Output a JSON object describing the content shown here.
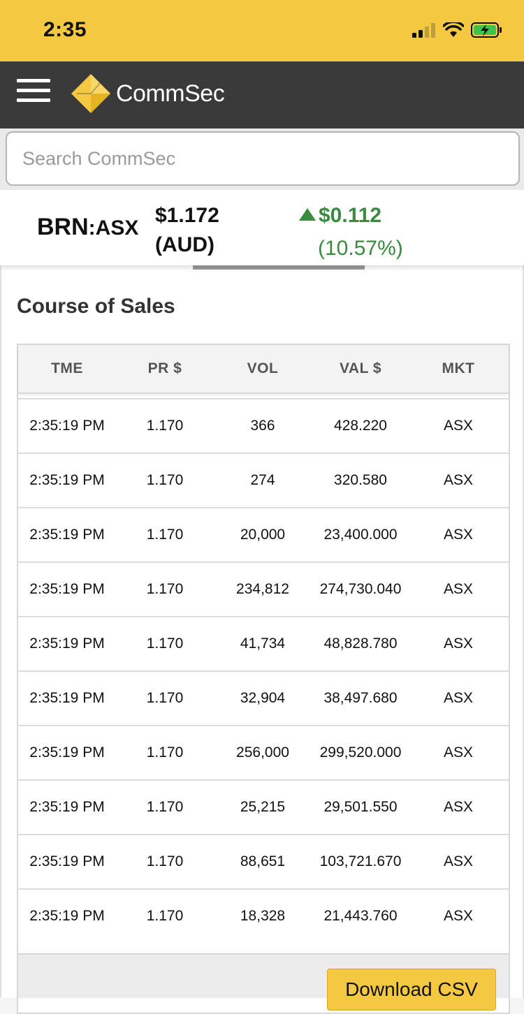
{
  "status_bar": {
    "time": "2:35",
    "icons": [
      "signal-icon",
      "wifi-icon",
      "battery-charging-icon"
    ]
  },
  "header": {
    "brand": "CommSec",
    "colors": {
      "header_bg": "#3a3a3a",
      "accent": "#f5c842"
    }
  },
  "search": {
    "placeholder": "Search CommSec",
    "value": ""
  },
  "quote": {
    "symbol": "BRN",
    "exchange": ":ASX",
    "price": "$1.172",
    "currency": "(AUD)",
    "change": "$0.112",
    "change_pct": "(10.57%)",
    "direction": "up",
    "change_color": "#3a8a3f"
  },
  "section": {
    "title": "Course of Sales"
  },
  "table": {
    "headers": {
      "time": "TME",
      "price": "PR $",
      "vol": "VOL",
      "val": "VAL $",
      "mkt": "MKT"
    },
    "rows": [
      {
        "time": "2:35:19 PM",
        "price": "1.170",
        "vol": "366",
        "val": "428.220",
        "mkt": "ASX"
      },
      {
        "time": "2:35:19 PM",
        "price": "1.170",
        "vol": "274",
        "val": "320.580",
        "mkt": "ASX"
      },
      {
        "time": "2:35:19 PM",
        "price": "1.170",
        "vol": "20,000",
        "val": "23,400.000",
        "mkt": "ASX"
      },
      {
        "time": "2:35:19 PM",
        "price": "1.170",
        "vol": "234,812",
        "val": "274,730.040",
        "mkt": "ASX"
      },
      {
        "time": "2:35:19 PM",
        "price": "1.170",
        "vol": "41,734",
        "val": "48,828.780",
        "mkt": "ASX"
      },
      {
        "time": "2:35:19 PM",
        "price": "1.170",
        "vol": "32,904",
        "val": "38,497.680",
        "mkt": "ASX"
      },
      {
        "time": "2:35:19 PM",
        "price": "1.170",
        "vol": "256,000",
        "val": "299,520.000",
        "mkt": "ASX"
      },
      {
        "time": "2:35:19 PM",
        "price": "1.170",
        "vol": "25,215",
        "val": "29,501.550",
        "mkt": "ASX"
      },
      {
        "time": "2:35:19 PM",
        "price": "1.170",
        "vol": "88,651",
        "val": "103,721.670",
        "mkt": "ASX"
      },
      {
        "time": "2:35:19 PM",
        "price": "1.170",
        "vol": "18,328",
        "val": "21,443.760",
        "mkt": "ASX"
      }
    ]
  },
  "download_button": {
    "label": "Download CSV"
  }
}
